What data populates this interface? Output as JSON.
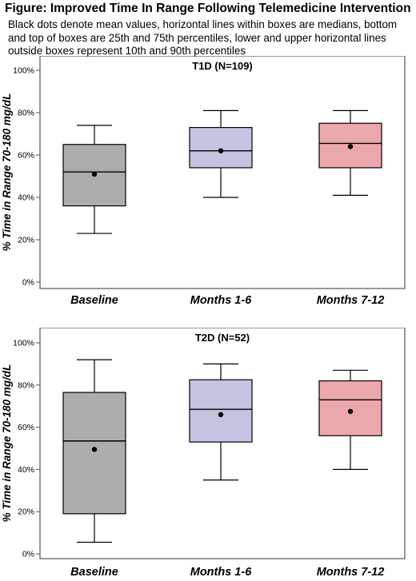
{
  "figure": {
    "title": "Figure: Improved Time In Range Following Telemedicine Intervention",
    "caption": "Black dots denote mean values, horizontal lines within boxes are medians, bottom and top of boxes are 25th and 75th percentiles, lower and upper horizontal lines outside boxes represent 10th and 90th percentiles"
  },
  "colors": {
    "Baseline": "#adadad",
    "Months 1-6": "#c4c4e2",
    "Months 7-12": "#eca7ad",
    "frame": "#555555",
    "mark": "#000000"
  },
  "chart_data": [
    {
      "type": "box",
      "title": "T1D (N=109)",
      "ylabel": "% Time in Range 70-180 mg/dL",
      "ylim": [
        0,
        100
      ],
      "yticks": [
        "0%",
        "20%",
        "40%",
        "60%",
        "80%",
        "100%"
      ],
      "categories": [
        "Baseline",
        "Months 1-6",
        "Months 7-12"
      ],
      "boxes": [
        {
          "category": "Baseline",
          "p10": 23,
          "q1": 36,
          "median": 52,
          "q3": 65,
          "p90": 74,
          "mean": 51
        },
        {
          "category": "Months 1-6",
          "p10": 40,
          "q1": 54,
          "median": 62,
          "q3": 73,
          "p90": 81,
          "mean": 62
        },
        {
          "category": "Months 7-12",
          "p10": 41,
          "q1": 54,
          "median": 65.5,
          "q3": 75,
          "p90": 81,
          "mean": 64
        }
      ],
      "grid": false
    },
    {
      "type": "box",
      "title": "T2D (N=52)",
      "ylabel": "% Time in Range 70-180 mg/dL",
      "ylim": [
        0,
        100
      ],
      "yticks": [
        "0%",
        "20%",
        "40%",
        "60%",
        "80%",
        "100%"
      ],
      "categories": [
        "Baseline",
        "Months 1-6",
        "Months 7-12"
      ],
      "boxes": [
        {
          "category": "Baseline",
          "p10": 5.5,
          "q1": 19,
          "median": 53.5,
          "q3": 76.5,
          "p90": 92,
          "mean": 49.5
        },
        {
          "category": "Months 1-6",
          "p10": 35,
          "q1": 53,
          "median": 68.5,
          "q3": 82.5,
          "p90": 90,
          "mean": 66
        },
        {
          "category": "Months 7-12",
          "p10": 40,
          "q1": 56,
          "median": 73,
          "q3": 82,
          "p90": 87,
          "mean": 67.5
        }
      ],
      "grid": false
    }
  ]
}
